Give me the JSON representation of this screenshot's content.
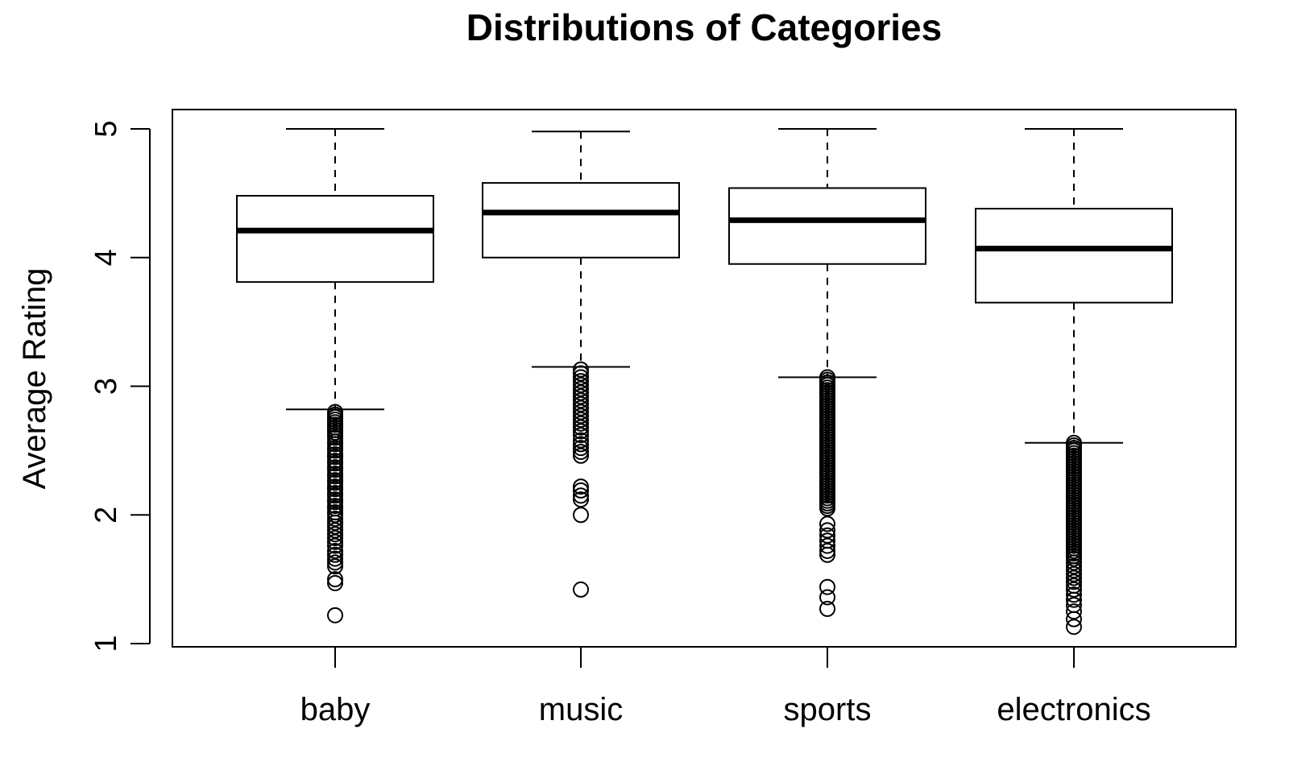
{
  "chart_data": {
    "type": "boxplot",
    "title": "Distributions of Categories",
    "xlabel": "",
    "ylabel": "Average Rating",
    "ylim": [
      1,
      5
    ],
    "yticks": [
      1,
      2,
      3,
      4,
      5
    ],
    "categories": [
      "baby",
      "music",
      "sports",
      "electronics"
    ],
    "grid": false,
    "legend": "none",
    "boxes": [
      {
        "category": "baby",
        "whisker_low": 2.82,
        "q1": 3.81,
        "median": 4.21,
        "q3": 4.48,
        "whisker_high": 5.0,
        "outliers": [
          2.8,
          2.78,
          2.76,
          2.74,
          2.72,
          2.7,
          2.68,
          2.66,
          2.64,
          2.62,
          2.6,
          2.57,
          2.55,
          2.52,
          2.5,
          2.47,
          2.45,
          2.42,
          2.4,
          2.37,
          2.35,
          2.32,
          2.3,
          2.27,
          2.25,
          2.22,
          2.2,
          2.17,
          2.15,
          2.12,
          2.1,
          2.07,
          2.05,
          2.02,
          2.0,
          1.97,
          1.94,
          1.91,
          1.88,
          1.85,
          1.82,
          1.79,
          1.76,
          1.72,
          1.69,
          1.66,
          1.63,
          1.6,
          1.5,
          1.47,
          1.22
        ]
      },
      {
        "category": "music",
        "whisker_low": 3.15,
        "q1": 4.0,
        "median": 4.35,
        "q3": 4.58,
        "whisker_high": 4.98,
        "outliers": [
          3.13,
          3.1,
          3.07,
          3.04,
          3.01,
          2.98,
          2.95,
          2.92,
          2.89,
          2.86,
          2.83,
          2.8,
          2.77,
          2.74,
          2.71,
          2.68,
          2.65,
          2.62,
          2.58,
          2.55,
          2.52,
          2.49,
          2.46,
          2.22,
          2.19,
          2.15,
          2.12,
          2.0,
          1.42
        ]
      },
      {
        "category": "sports",
        "whisker_low": 3.07,
        "q1": 3.95,
        "median": 4.29,
        "q3": 4.54,
        "whisker_high": 5.0,
        "outliers": [
          3.07,
          3.05,
          3.03,
          3.01,
          2.99,
          2.97,
          2.95,
          2.93,
          2.91,
          2.89,
          2.87,
          2.85,
          2.83,
          2.81,
          2.79,
          2.77,
          2.75,
          2.73,
          2.71,
          2.69,
          2.67,
          2.65,
          2.63,
          2.61,
          2.59,
          2.57,
          2.55,
          2.53,
          2.51,
          2.49,
          2.47,
          2.45,
          2.43,
          2.41,
          2.39,
          2.37,
          2.35,
          2.33,
          2.31,
          2.29,
          2.27,
          2.25,
          2.23,
          2.21,
          2.19,
          2.17,
          2.15,
          2.13,
          2.11,
          2.09,
          2.07,
          2.05,
          1.93,
          1.88,
          1.84,
          1.8,
          1.76,
          1.72,
          1.69,
          1.44,
          1.36,
          1.27
        ]
      },
      {
        "category": "electronics",
        "whisker_low": 2.56,
        "q1": 3.65,
        "median": 4.07,
        "q3": 4.38,
        "whisker_high": 5.0,
        "outliers": [
          2.56,
          2.54,
          2.52,
          2.5,
          2.48,
          2.46,
          2.44,
          2.42,
          2.4,
          2.38,
          2.36,
          2.34,
          2.32,
          2.3,
          2.28,
          2.26,
          2.24,
          2.22,
          2.2,
          2.18,
          2.16,
          2.14,
          2.12,
          2.1,
          2.08,
          2.06,
          2.04,
          2.02,
          2.0,
          1.98,
          1.96,
          1.94,
          1.92,
          1.9,
          1.88,
          1.86,
          1.84,
          1.82,
          1.8,
          1.78,
          1.76,
          1.74,
          1.72,
          1.7,
          1.68,
          1.66,
          1.63,
          1.6,
          1.57,
          1.54,
          1.51,
          1.48,
          1.45,
          1.42,
          1.38,
          1.34,
          1.3,
          1.25,
          1.19,
          1.13
        ]
      }
    ]
  }
}
